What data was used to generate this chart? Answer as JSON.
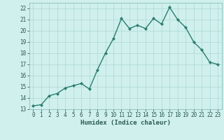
{
  "title": "",
  "xlabel": "Humidex (Indice chaleur)",
  "x_values": [
    0,
    1,
    2,
    3,
    4,
    5,
    6,
    7,
    8,
    9,
    10,
    11,
    12,
    13,
    14,
    15,
    16,
    17,
    18,
    19,
    20,
    21,
    22,
    23
  ],
  "y_values": [
    13.3,
    13.4,
    14.2,
    14.4,
    14.9,
    15.1,
    15.3,
    14.8,
    16.5,
    18.0,
    19.3,
    21.1,
    20.2,
    20.5,
    20.2,
    21.1,
    20.6,
    22.1,
    21.0,
    20.3,
    19.0,
    18.3,
    17.2,
    17.0
  ],
  "line_color": "#2d7d6e",
  "marker": "D",
  "marker_size": 2.0,
  "bg_color": "#cff0ec",
  "grid_color": "#aed8d3",
  "ylim": [
    13,
    22.5
  ],
  "yticks": [
    13,
    14,
    15,
    16,
    17,
    18,
    19,
    20,
    21,
    22
  ],
  "xticks": [
    0,
    1,
    2,
    3,
    4,
    5,
    6,
    7,
    8,
    9,
    10,
    11,
    12,
    13,
    14,
    15,
    16,
    17,
    18,
    19,
    20,
    21,
    22,
    23
  ],
  "tick_fontsize": 5.5,
  "xlabel_fontsize": 6.5,
  "line_width": 1.0
}
